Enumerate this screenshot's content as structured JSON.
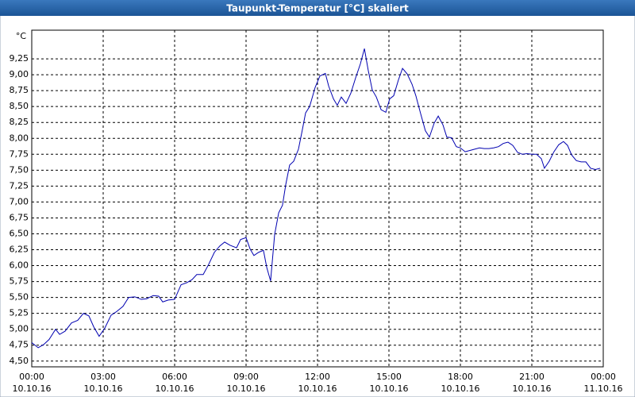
{
  "chart_data": {
    "type": "line",
    "title": "Taupunkt-Temperatur [°C] skaliert",
    "y_unit": "°C",
    "x": [
      0,
      0.27,
      0.5,
      0.73,
      1,
      1.17,
      1.4,
      1.67,
      1.93,
      2.17,
      2.4,
      2.6,
      2.83,
      3.07,
      3.33,
      3.57,
      3.83,
      4.07,
      4.33,
      4.6,
      4.83,
      5.1,
      5.33,
      5.5,
      5.73,
      6,
      6.27,
      6.5,
      6.73,
      6.93,
      7.2,
      7.43,
      7.67,
      7.9,
      8.1,
      8.33,
      8.6,
      8.77,
      9,
      9.17,
      9.33,
      9.53,
      9.73,
      9.87,
      10.03,
      10.2,
      10.37,
      10.53,
      10.67,
      10.83,
      11,
      11.2,
      11.33,
      11.5,
      11.67,
      11.9,
      12.1,
      12.33,
      12.47,
      12.67,
      12.83,
      13,
      13.2,
      13.4,
      13.6,
      13.8,
      13.97,
      14.13,
      14.3,
      14.47,
      14.67,
      14.87,
      15.03,
      15.2,
      15.4,
      15.57,
      15.77,
      15.97,
      16.13,
      16.33,
      16.53,
      16.7,
      16.9,
      17.07,
      17.27,
      17.43,
      17.63,
      17.83,
      18,
      18.2,
      18.4,
      18.6,
      18.8,
      19,
      19.2,
      19.4,
      19.6,
      19.8,
      20,
      20.2,
      20.4,
      20.6,
      20.8,
      21,
      21.2,
      21.4,
      21.53,
      21.73,
      21.93,
      22.13,
      22.33,
      22.5,
      22.67,
      22.87,
      23.07,
      23.27,
      23.47,
      23.67,
      23.87
    ],
    "series": [
      {
        "name": "Taupunkt-Temperatur",
        "color": "#0000b0",
        "values": [
          4.79,
          4.71,
          4.76,
          4.84,
          5.0,
          4.92,
          4.97,
          5.1,
          5.14,
          5.25,
          5.21,
          5.04,
          4.89,
          5.02,
          5.22,
          5.28,
          5.36,
          5.5,
          5.51,
          5.47,
          5.48,
          5.53,
          5.52,
          5.43,
          5.46,
          5.47,
          5.7,
          5.73,
          5.78,
          5.86,
          5.86,
          6.02,
          6.21,
          6.31,
          6.37,
          6.32,
          6.28,
          6.41,
          6.44,
          6.26,
          6.16,
          6.21,
          6.24,
          5.97,
          5.76,
          6.49,
          6.83,
          6.95,
          7.28,
          7.58,
          7.64,
          7.83,
          8.07,
          8.4,
          8.5,
          8.8,
          8.98,
          9.02,
          8.82,
          8.62,
          8.52,
          8.65,
          8.55,
          8.71,
          8.95,
          9.17,
          9.41,
          9.07,
          8.76,
          8.65,
          8.45,
          8.41,
          8.62,
          8.67,
          8.92,
          9.1,
          9.01,
          8.85,
          8.67,
          8.39,
          8.12,
          8.02,
          8.24,
          8.35,
          8.21,
          8.02,
          8.01,
          7.87,
          7.85,
          7.79,
          7.81,
          7.83,
          7.85,
          7.84,
          7.84,
          7.85,
          7.87,
          7.92,
          7.94,
          7.89,
          7.78,
          7.75,
          7.76,
          7.75,
          7.75,
          7.68,
          7.53,
          7.64,
          7.79,
          7.9,
          7.95,
          7.89,
          7.74,
          7.65,
          7.63,
          7.63,
          7.53,
          7.51,
          7.53
        ]
      }
    ],
    "xlim": [
      0,
      24
    ],
    "xticks": [
      {
        "value": 0,
        "label": [
          "00:00",
          "10.10.16"
        ]
      },
      {
        "value": 3,
        "label": [
          "03:00",
          "10.10.16"
        ]
      },
      {
        "value": 6,
        "label": [
          "06:00",
          "10.10.16"
        ]
      },
      {
        "value": 9,
        "label": [
          "09:00",
          "10.10.16"
        ]
      },
      {
        "value": 12,
        "label": [
          "12:00",
          "10.10.16"
        ]
      },
      {
        "value": 15,
        "label": [
          "15:00",
          "10.10.16"
        ]
      },
      {
        "value": 18,
        "label": [
          "18:00",
          "10.10.16"
        ]
      },
      {
        "value": 21,
        "label": [
          "21:00",
          "10.10.16"
        ]
      },
      {
        "value": 24,
        "label": [
          "00:00",
          "11.10.16"
        ]
      }
    ],
    "ylim": [
      4.41,
      9.7
    ],
    "yticks": [
      {
        "value": 4.5,
        "label": "4,50"
      },
      {
        "value": 4.75,
        "label": "4,75"
      },
      {
        "value": 5.0,
        "label": "5,00"
      },
      {
        "value": 5.25,
        "label": "5,25"
      },
      {
        "value": 5.5,
        "label": "5,50"
      },
      {
        "value": 5.75,
        "label": "5,75"
      },
      {
        "value": 6.0,
        "label": "6,00"
      },
      {
        "value": 6.25,
        "label": "6,25"
      },
      {
        "value": 6.5,
        "label": "6,50"
      },
      {
        "value": 6.75,
        "label": "6,75"
      },
      {
        "value": 7.0,
        "label": "7,00"
      },
      {
        "value": 7.25,
        "label": "7,25"
      },
      {
        "value": 7.5,
        "label": "7,50"
      },
      {
        "value": 7.75,
        "label": "7,75"
      },
      {
        "value": 8.0,
        "label": "8,00"
      },
      {
        "value": 8.25,
        "label": "8,25"
      },
      {
        "value": 8.5,
        "label": "8,50"
      },
      {
        "value": 8.75,
        "label": "8,75"
      },
      {
        "value": 9.0,
        "label": "9,00"
      },
      {
        "value": 9.25,
        "label": "9,25"
      }
    ],
    "grid": true
  }
}
